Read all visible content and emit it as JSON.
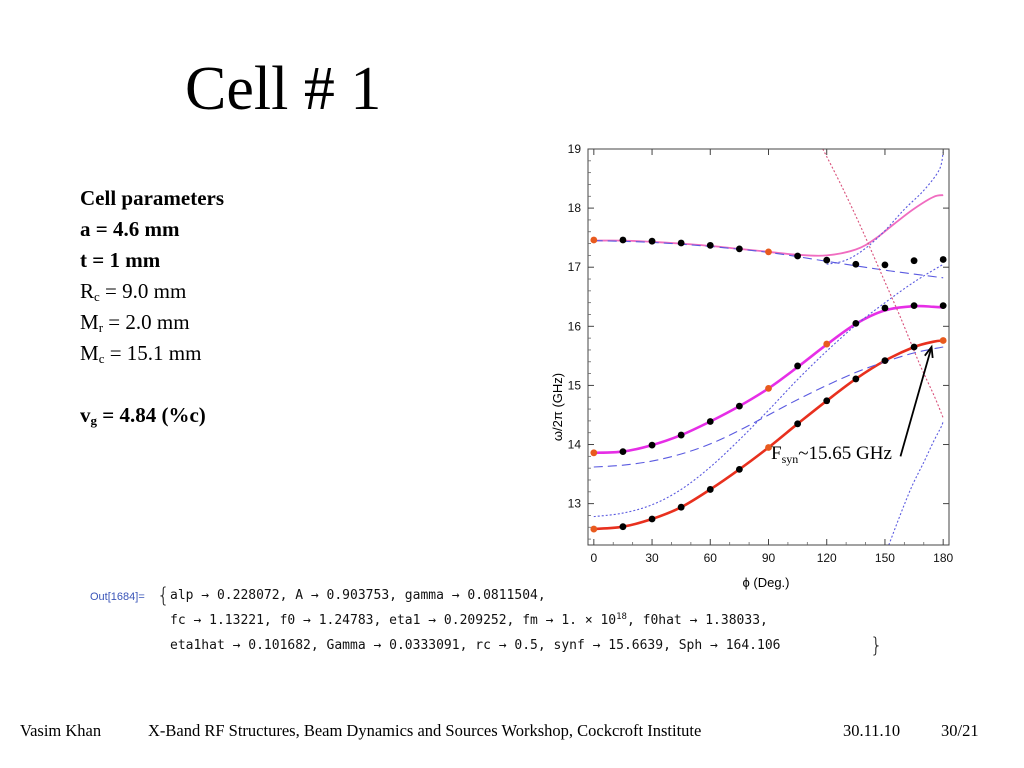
{
  "slide": {
    "title": "Cell # 1",
    "params": {
      "heading": "Cell parameters",
      "a": "a = 4.6 mm",
      "t": "t = 1 mm",
      "rc": {
        "sym": "R",
        "sub": "c",
        "val": " = 9.0 mm"
      },
      "mr": {
        "sym": "M",
        "sub": "r",
        "val": " = 2.0 mm"
      },
      "mc": {
        "sym": "M",
        "sub": "c",
        "val": " = 15.1 mm"
      },
      "vg": {
        "sym": "v",
        "sub": "g",
        "val": " = 4.84 (%c)"
      }
    },
    "annotation": {
      "sym": "F",
      "sub": "syn",
      "val": "~15.65 GHz"
    },
    "mathematica": {
      "out_label": "Out[1684]=",
      "line1": "alp → 0.228072, A → 0.903753, gamma → 0.0811504,",
      "line2a": "fc → 1.13221, f0 → 1.24783, eta1 → 0.209252, fm → 1. × 10",
      "line2exp": "18",
      "line2b": ", f0hat → 1.38033,",
      "line3": "eta1hat → 0.101682, Gamma → 0.0333091, rc → 0.5, synf → 15.6639, Sph → 164.106"
    },
    "footer": {
      "author": "Vasim Khan",
      "event": "X-Band RF Structures, Beam Dynamics and Sources Workshop, Cockcroft Institute",
      "date": "30.11.10",
      "page": "30/21"
    }
  },
  "chart_data": {
    "type": "scatter",
    "xlabel": "ϕ (Deg.)",
    "ylabel": "ω/2π (GHz)",
    "xlim": [
      -3,
      183
    ],
    "ylim": [
      12.3,
      19.0
    ],
    "xticks": [
      0,
      30,
      60,
      90,
      120,
      150,
      180
    ],
    "yticks": [
      13,
      14,
      15,
      16,
      17,
      18,
      19
    ],
    "colors": {
      "red": "#e8301e",
      "magenta": "#e62ee6",
      "pink": "#f06cc0",
      "blue": "#5a5ae0",
      "dot_black": "#000000",
      "dot_orange": "#e85a1e"
    },
    "curves": [
      {
        "style": "solid-red",
        "x": [
          0,
          15,
          30,
          45,
          60,
          75,
          90,
          105,
          120,
          135,
          150,
          165,
          175,
          180
        ],
        "y": [
          12.57,
          12.61,
          12.74,
          12.94,
          13.24,
          13.58,
          13.95,
          14.35,
          14.74,
          15.11,
          15.42,
          15.65,
          15.74,
          15.76
        ]
      },
      {
        "style": "solid-magenta",
        "x": [
          0,
          15,
          30,
          45,
          60,
          75,
          90,
          105,
          120,
          135,
          150,
          165,
          175,
          180
        ],
        "y": [
          13.86,
          13.88,
          13.99,
          14.16,
          14.39,
          14.65,
          14.95,
          15.31,
          15.69,
          16.04,
          16.27,
          16.34,
          16.33,
          16.32
        ]
      },
      {
        "style": "solid-pink",
        "x": [
          0,
          15,
          30,
          45,
          60,
          75,
          90,
          105,
          120,
          135,
          145,
          155,
          165,
          175,
          180
        ],
        "y": [
          17.45,
          17.45,
          17.43,
          17.4,
          17.36,
          17.31,
          17.26,
          17.21,
          17.2,
          17.3,
          17.48,
          17.74,
          17.99,
          18.19,
          18.22
        ]
      },
      {
        "style": "dashed-blue",
        "x": [
          0,
          15,
          30,
          45,
          60,
          75,
          90,
          105,
          120,
          135,
          150,
          165,
          180
        ],
        "y": [
          13.62,
          13.65,
          13.72,
          13.84,
          14.01,
          14.24,
          14.5,
          14.76,
          15.0,
          15.22,
          15.4,
          15.55,
          15.65
        ]
      },
      {
        "style": "dashed-blue",
        "x": [
          0,
          30,
          60,
          90,
          120,
          150,
          180
        ],
        "y": [
          17.45,
          17.42,
          17.35,
          17.25,
          17.1,
          16.95,
          16.82
        ]
      },
      {
        "style": "dotted-blue",
        "x": [
          0,
          15,
          30,
          45,
          60,
          75,
          90,
          105,
          120,
          135,
          150,
          165,
          180
        ],
        "y": [
          12.78,
          12.84,
          12.98,
          13.24,
          13.62,
          14.08,
          14.58,
          15.1,
          15.58,
          16.02,
          16.4,
          16.75,
          17.05
        ]
      },
      {
        "style": "dotted-blue",
        "x": [
          120,
          130,
          140,
          150,
          160,
          170,
          178,
          180
        ],
        "y": [
          17.05,
          17.12,
          17.32,
          17.62,
          17.98,
          18.3,
          18.65,
          18.95
        ]
      },
      {
        "style": "dotted-blue",
        "x": [
          152,
          158,
          164,
          170,
          175,
          179,
          180
        ],
        "y": [
          12.3,
          12.82,
          13.3,
          13.7,
          14.05,
          14.3,
          14.4
        ]
      },
      {
        "style": "dotted-red",
        "x": [
          118,
          128,
          138,
          148,
          158,
          168,
          175,
          180
        ],
        "y": [
          19.0,
          18.35,
          17.65,
          16.9,
          16.15,
          15.35,
          14.85,
          14.45
        ]
      }
    ],
    "points": [
      {
        "color": "orange",
        "x": 0,
        "y": 12.57
      },
      {
        "color": "black",
        "x": 15,
        "y": 12.61
      },
      {
        "color": "black",
        "x": 30,
        "y": 12.74
      },
      {
        "color": "black",
        "x": 45,
        "y": 12.94
      },
      {
        "color": "black",
        "x": 60,
        "y": 13.24
      },
      {
        "color": "black",
        "x": 75,
        "y": 13.58
      },
      {
        "color": "orange",
        "x": 90,
        "y": 13.95
      },
      {
        "color": "black",
        "x": 105,
        "y": 14.35
      },
      {
        "color": "black",
        "x": 120,
        "y": 14.74
      },
      {
        "color": "black",
        "x": 135,
        "y": 15.11
      },
      {
        "color": "black",
        "x": 150,
        "y": 15.42
      },
      {
        "color": "black",
        "x": 165,
        "y": 15.65
      },
      {
        "color": "orange",
        "x": 180,
        "y": 15.76
      },
      {
        "color": "orange",
        "x": 0,
        "y": 13.86
      },
      {
        "color": "black",
        "x": 15,
        "y": 13.88
      },
      {
        "color": "black",
        "x": 30,
        "y": 13.99
      },
      {
        "color": "black",
        "x": 45,
        "y": 14.16
      },
      {
        "color": "black",
        "x": 60,
        "y": 14.39
      },
      {
        "color": "black",
        "x": 75,
        "y": 14.65
      },
      {
        "color": "orange",
        "x": 90,
        "y": 14.95
      },
      {
        "color": "black",
        "x": 105,
        "y": 15.33
      },
      {
        "color": "orange",
        "x": 120,
        "y": 15.7
      },
      {
        "color": "black",
        "x": 135,
        "y": 16.05
      },
      {
        "color": "black",
        "x": 150,
        "y": 16.31
      },
      {
        "color": "black",
        "x": 165,
        "y": 16.35
      },
      {
        "color": "black",
        "x": 180,
        "y": 16.35
      },
      {
        "color": "orange",
        "x": 0,
        "y": 17.46
      },
      {
        "color": "black",
        "x": 15,
        "y": 17.46
      },
      {
        "color": "black",
        "x": 30,
        "y": 17.44
      },
      {
        "color": "black",
        "x": 45,
        "y": 17.41
      },
      {
        "color": "black",
        "x": 60,
        "y": 17.37
      },
      {
        "color": "black",
        "x": 75,
        "y": 17.31
      },
      {
        "color": "orange",
        "x": 90,
        "y": 17.26
      },
      {
        "color": "black",
        "x": 105,
        "y": 17.19
      },
      {
        "color": "black",
        "x": 120,
        "y": 17.12
      },
      {
        "color": "black",
        "x": 135,
        "y": 17.05
      },
      {
        "color": "black",
        "x": 150,
        "y": 17.04
      },
      {
        "color": "black",
        "x": 165,
        "y": 17.11
      },
      {
        "color": "black",
        "x": 180,
        "y": 17.13
      }
    ],
    "arrow": {
      "from": [
        158,
        13.8
      ],
      "to": [
        174,
        15.65
      ]
    }
  }
}
